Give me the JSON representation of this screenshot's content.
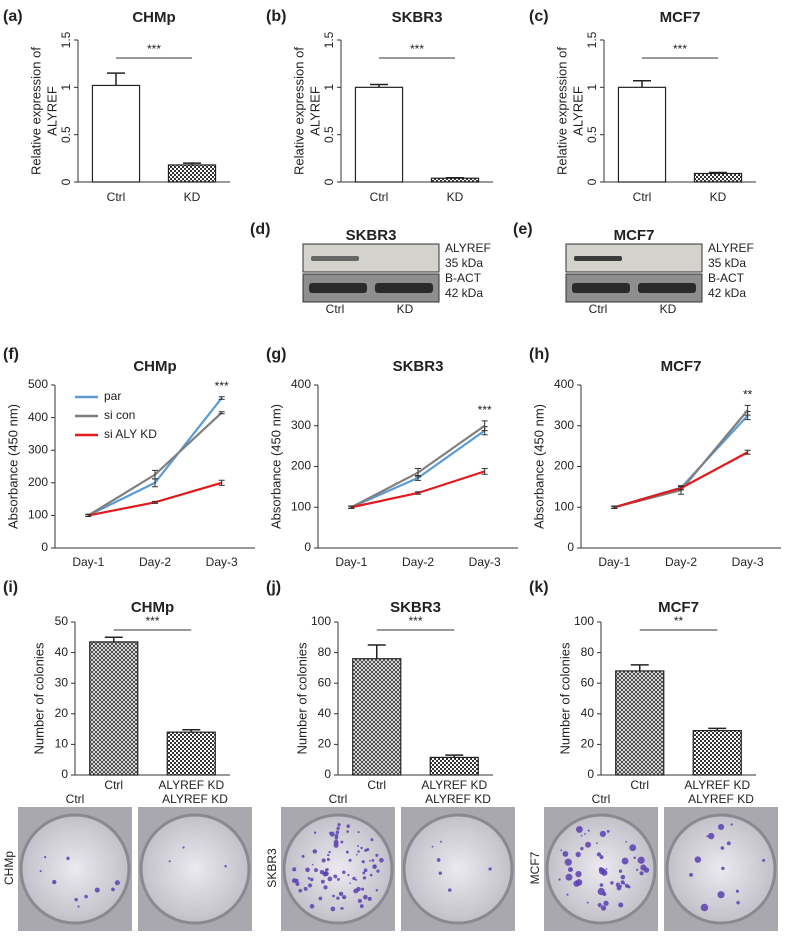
{
  "chart_data": [
    {
      "type": "bar",
      "panel": "(a)",
      "title": "CHMp",
      "ylabel": [
        "Relative expression of",
        "ALYREF"
      ],
      "categories": [
        "Ctrl",
        "KD"
      ],
      "values": [
        1.02,
        0.18
      ],
      "errors": [
        0.13,
        0.02
      ],
      "bar_styles": [
        "plain",
        "checkered"
      ],
      "ylim": [
        0,
        1.5
      ],
      "yticks": [
        0,
        0.5,
        1,
        1.5
      ],
      "annotation": "***"
    },
    {
      "type": "bar",
      "panel": "(b)",
      "title": "SKBR3",
      "ylabel": [
        "Relative expression of",
        "ALYREF"
      ],
      "categories": [
        "Ctrl",
        "KD"
      ],
      "values": [
        1.0,
        0.04
      ],
      "errors": [
        0.03,
        0.005
      ],
      "bar_styles": [
        "plain",
        "checkered"
      ],
      "ylim": [
        0,
        1.5
      ],
      "yticks": [
        0,
        0.5,
        1,
        1.5
      ],
      "annotation": "***"
    },
    {
      "type": "bar",
      "panel": "(c)",
      "title": "MCF7",
      "ylabel": [
        "Relative expression of",
        "ALYREF"
      ],
      "categories": [
        "Ctrl",
        "KD"
      ],
      "values": [
        1.0,
        0.09
      ],
      "errors": [
        0.07,
        0.01
      ],
      "bar_styles": [
        "plain",
        "checkered"
      ],
      "ylim": [
        0,
        1.5
      ],
      "yticks": [
        0,
        0.5,
        1,
        1.5
      ],
      "annotation": "***"
    },
    {
      "type": "line",
      "panel": "(f)",
      "title": "CHMp",
      "ylabel": "Absorbance (450 nm)",
      "categories": [
        "Day-1",
        "Day-2",
        "Day-3"
      ],
      "series": [
        {
          "name": "par",
          "color": "#5b9bd5",
          "values": [
            100,
            200,
            460
          ],
          "errors": [
            3,
            12,
            4
          ]
        },
        {
          "name": "si con",
          "color": "#7f7f7f",
          "values": [
            100,
            225,
            415
          ],
          "errors": [
            3,
            13,
            3
          ]
        },
        {
          "name": "si ALY KD",
          "color": "#e3191c",
          "values": [
            100,
            140,
            200
          ],
          "errors": [
            3,
            3,
            8
          ]
        }
      ],
      "ylim": [
        0,
        500
      ],
      "yticks": [
        0,
        100,
        200,
        300,
        400,
        500
      ],
      "legend": "upper left",
      "annotation": "***"
    },
    {
      "type": "line",
      "panel": "(g)",
      "title": "SKBR3",
      "ylabel": "Absorbance (450 nm)",
      "categories": [
        "Day-1",
        "Day-2",
        "Day-3"
      ],
      "series": [
        {
          "color": "#5b9bd5",
          "values": [
            100,
            172,
            288
          ],
          "errors": [
            3,
            6,
            10
          ]
        },
        {
          "color": "#7f7f7f",
          "values": [
            100,
            185,
            300
          ],
          "errors": [
            3,
            10,
            12
          ]
        },
        {
          "color": "#e3191c",
          "values": [
            100,
            135,
            188
          ],
          "errors": [
            2,
            3,
            7
          ]
        }
      ],
      "ylim": [
        0,
        400
      ],
      "yticks": [
        0,
        100,
        200,
        300,
        400
      ],
      "annotation": "***"
    },
    {
      "type": "line",
      "panel": "(h)",
      "title": "MCF7",
      "ylabel": "Absorbance (450 nm)",
      "categories": [
        "Day-1",
        "Day-2",
        "Day-3"
      ],
      "series": [
        {
          "color": "#5b9bd5",
          "values": [
            100,
            148,
            325
          ],
          "errors": [
            3,
            5,
            10
          ]
        },
        {
          "color": "#7f7f7f",
          "values": [
            100,
            142,
            338
          ],
          "errors": [
            3,
            10,
            12
          ]
        },
        {
          "color": "#e3191c",
          "values": [
            100,
            147,
            235
          ],
          "errors": [
            2,
            4,
            5
          ]
        }
      ],
      "ylim": [
        0,
        400
      ],
      "yticks": [
        0,
        100,
        200,
        300,
        400
      ],
      "annotation": "**"
    },
    {
      "type": "bar",
      "panel": "(i)",
      "title": "CHMp",
      "ylabel": "Number of colonies",
      "categories": [
        "Ctrl",
        "ALYREF KD"
      ],
      "values": [
        43.5,
        14
      ],
      "errors": [
        1.5,
        0.8
      ],
      "bar_styles": [
        "crosshatch",
        "checkered"
      ],
      "ylim": [
        0,
        50
      ],
      "yticks": [
        0,
        10,
        20,
        30,
        40,
        50
      ],
      "annotation": "***"
    },
    {
      "type": "bar",
      "panel": "(j)",
      "title": "SKBR3",
      "ylabel": "Number of colonies",
      "categories": [
        "Ctrl",
        "ALYREF KD"
      ],
      "values": [
        76,
        11.5
      ],
      "errors": [
        9,
        1.5
      ],
      "bar_styles": [
        "crosshatch",
        "checkered"
      ],
      "ylim": [
        0,
        100
      ],
      "yticks": [
        0,
        20,
        40,
        60,
        80,
        100
      ],
      "annotation": "***"
    },
    {
      "type": "bar",
      "panel": "(k)",
      "title": "MCF7",
      "ylabel": "Number of colonies",
      "categories": [
        "Ctrl",
        "ALYREF KD"
      ],
      "values": [
        68,
        29
      ],
      "errors": [
        4,
        1.5
      ],
      "bar_styles": [
        "crosshatch",
        "checkered"
      ],
      "ylim": [
        0,
        100
      ],
      "yticks": [
        0,
        20,
        40,
        60,
        80,
        100
      ],
      "annotation": "**"
    }
  ],
  "blots": [
    {
      "panel": "(d)",
      "title": "SKBR3",
      "bands": [
        {
          "name": "ALYREF",
          "size": "35 kDa"
        },
        {
          "name": "B-ACT",
          "size": "42 kDa"
        }
      ],
      "lanes": [
        "Ctrl",
        "KD"
      ]
    },
    {
      "panel": "(e)",
      "title": "MCF7",
      "bands": [
        {
          "name": "ALYREF",
          "size": "35 kDa"
        },
        {
          "name": "B-ACT",
          "size": "42 kDa"
        }
      ],
      "lanes": [
        "Ctrl",
        "KD"
      ]
    }
  ],
  "plates": [
    {
      "cell_line": "CHMp",
      "labels": [
        "Ctrl",
        "ALYREF KD"
      ]
    },
    {
      "cell_line": "SKBR3",
      "labels": [
        "Ctrl",
        "ALYREF KD"
      ]
    },
    {
      "cell_line": "MCF7",
      "labels": [
        "Ctrl",
        "ALYREF KD"
      ]
    }
  ]
}
